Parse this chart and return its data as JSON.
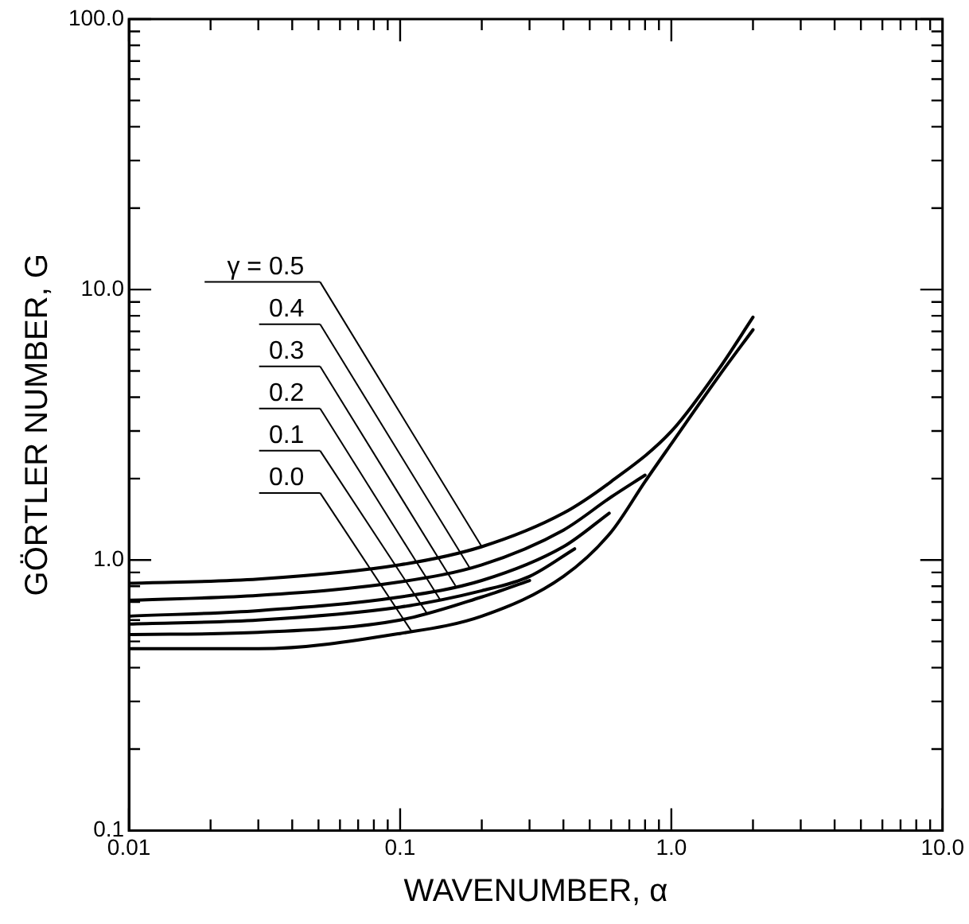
{
  "chart_data": {
    "type": "line",
    "xlabel": "WAVENUMBER, α",
    "ylabel": "GÖRTLER NUMBER, G",
    "log": "xy",
    "grid": false,
    "legend": "top left",
    "marker": "none",
    "line_style": "solid",
    "xlim": [
      0.01,
      10
    ],
    "ylim": [
      0.1,
      100
    ],
    "xticks": [
      0.01,
      {
        "value": 0.02,
        "label": null
      },
      {
        "value": 0.03,
        "label": null
      },
      {
        "value": 0.04,
        "label": null
      },
      {
        "value": 0.05,
        "label": null
      },
      {
        "value": 0.06,
        "label": null
      },
      {
        "value": 0.07,
        "label": null
      },
      {
        "value": 0.08,
        "label": null
      },
      {
        "value": 0.09,
        "label": null
      },
      0.1,
      {
        "value": 0.2,
        "label": null
      },
      {
        "value": 0.3,
        "label": null
      },
      {
        "value": 0.4,
        "label": null
      },
      {
        "value": 0.5,
        "label": null
      },
      {
        "value": 0.6,
        "label": null
      },
      {
        "value": 0.7,
        "label": null
      },
      {
        "value": 0.8,
        "label": null
      },
      {
        "value": 0.9,
        "label": null
      },
      {
        "value": 1,
        "label": "1.0"
      },
      {
        "value": 2,
        "label": null
      },
      {
        "value": 3,
        "label": null
      },
      {
        "value": 4,
        "label": null
      },
      {
        "value": 5,
        "label": null
      },
      {
        "value": 6,
        "label": null
      },
      {
        "value": 7,
        "label": null
      },
      {
        "value": 8,
        "label": null
      },
      {
        "value": 9,
        "label": null
      },
      {
        "value": 10,
        "label": "10.0"
      }
    ],
    "yticks": [
      0.1,
      {
        "value": 0.2,
        "label": null
      },
      {
        "value": 0.3,
        "label": null
      },
      {
        "value": 0.4,
        "label": null
      },
      {
        "value": 0.5,
        "label": null
      },
      {
        "value": 0.6,
        "label": null
      },
      {
        "value": 0.7,
        "label": null
      },
      {
        "value": 0.8,
        "label": null
      },
      {
        "value": 0.9,
        "label": null
      },
      {
        "value": 1,
        "label": "1.0"
      },
      {
        "value": 2,
        "label": null
      },
      {
        "value": 3,
        "label": null
      },
      {
        "value": 4,
        "label": null
      },
      {
        "value": 5,
        "label": null
      },
      {
        "value": 6,
        "label": null
      },
      {
        "value": 7,
        "label": null
      },
      {
        "value": 8,
        "label": null
      },
      {
        "value": 9,
        "label": null
      },
      {
        "value": 10,
        "label": "10.0"
      },
      {
        "value": 20,
        "label": null
      },
      {
        "value": 30,
        "label": null
      },
      {
        "value": 40,
        "label": null
      },
      {
        "value": 50,
        "label": null
      },
      {
        "value": 60,
        "label": null
      },
      {
        "value": 70,
        "label": null
      },
      {
        "value": 80,
        "label": null
      },
      {
        "value": 90,
        "label": null
      },
      {
        "value": 100,
        "label": "100.0"
      }
    ],
    "series": [
      {
        "name": "γ = 0.5",
        "color": "#000000",
        "x": [
          0.01,
          0.03,
          0.1,
          0.2,
          0.4,
          0.6,
          1.0,
          1.5,
          2.0
        ],
        "values": [
          0.82,
          0.85,
          0.96,
          1.12,
          1.49,
          1.95,
          2.99,
          5.1,
          7.9
        ]
      },
      {
        "name": "0.4",
        "color": "#000000",
        "x": [
          0.01,
          0.03,
          0.1,
          0.2,
          0.4,
          0.6,
          0.8
        ],
        "values": [
          0.71,
          0.74,
          0.83,
          0.96,
          1.29,
          1.71,
          2.06
        ]
      },
      {
        "name": "0.3",
        "color": "#000000",
        "x": [
          0.01,
          0.03,
          0.1,
          0.2,
          0.4,
          0.59
        ],
        "values": [
          0.62,
          0.65,
          0.73,
          0.84,
          1.12,
          1.49
        ]
      },
      {
        "name": "0.2",
        "color": "#000000",
        "x": [
          0.01,
          0.03,
          0.1,
          0.2,
          0.3,
          0.44
        ],
        "values": [
          0.58,
          0.6,
          0.67,
          0.77,
          0.87,
          1.1
        ]
      },
      {
        "name": "0.1",
        "color": "#000000",
        "x": [
          0.01,
          0.03,
          0.1,
          0.2,
          0.3
        ],
        "values": [
          0.53,
          0.54,
          0.6,
          0.73,
          0.84
        ]
      },
      {
        "name": "0.0",
        "color": "#000000",
        "x": [
          0.01,
          0.03,
          0.1,
          0.2,
          0.4,
          0.6,
          0.8,
          1.0,
          1.5,
          2.0
        ],
        "values": [
          0.47,
          0.47,
          0.535,
          0.62,
          0.87,
          1.27,
          1.95,
          2.69,
          4.8,
          7.1
        ]
      }
    ]
  }
}
